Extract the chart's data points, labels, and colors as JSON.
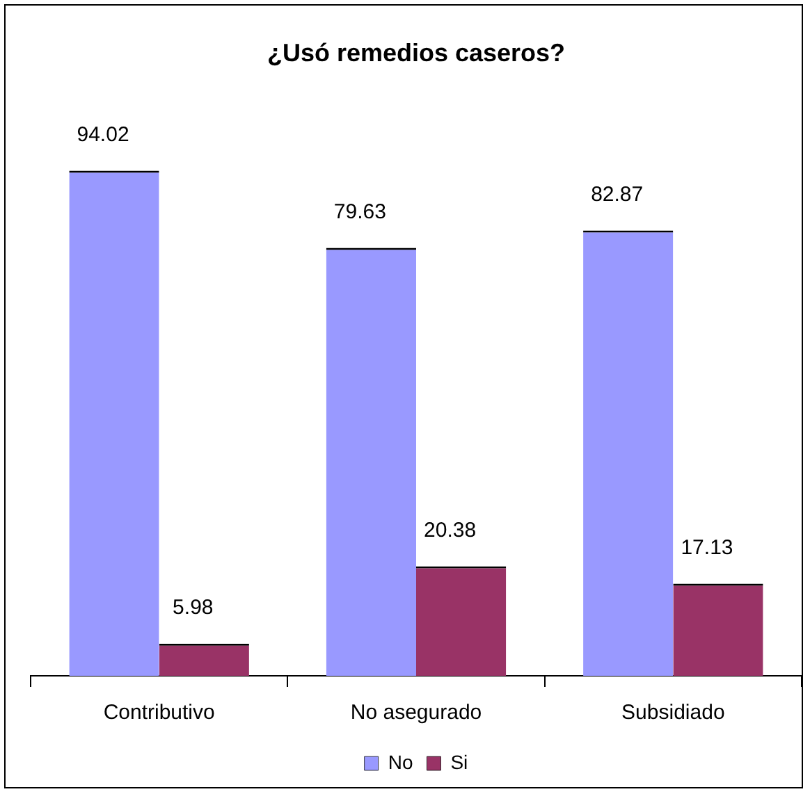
{
  "chart_data": {
    "type": "bar",
    "title": "¿Usó remedios caseros?",
    "categories": [
      "Contributivo",
      "No asegurado",
      "Subsidiado"
    ],
    "series": [
      {
        "name": "No",
        "color": "#9999ff",
        "values": [
          94.02,
          79.63,
          82.87
        ]
      },
      {
        "name": "Si",
        "color": "#993366",
        "values": [
          5.98,
          20.38,
          17.13
        ]
      }
    ],
    "data_labels": true,
    "tick_labels": "x",
    "legend": "bottom",
    "grid": false
  }
}
